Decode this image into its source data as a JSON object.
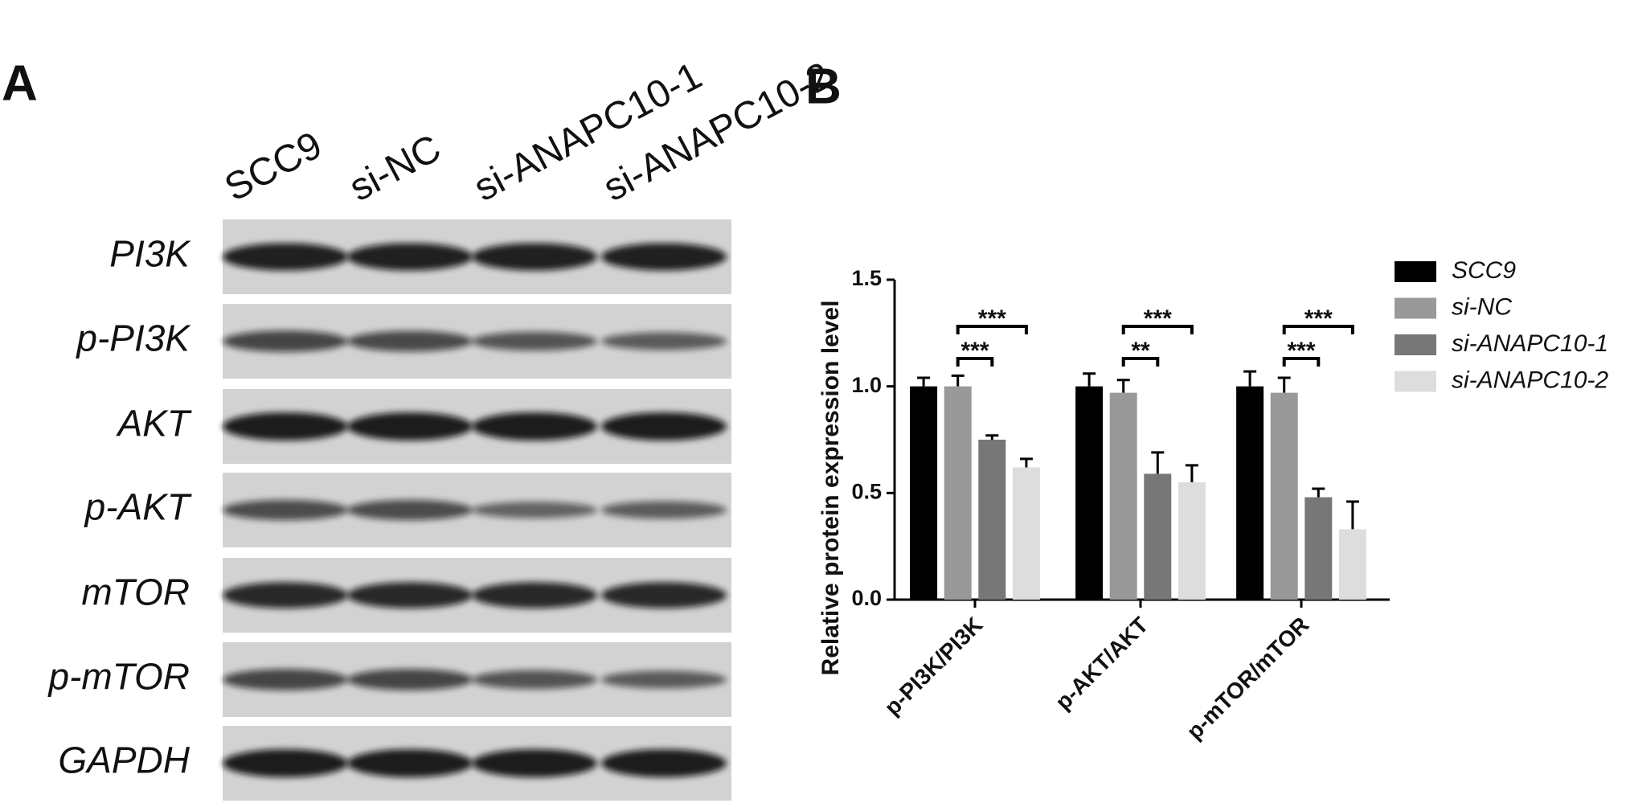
{
  "panel_a": {
    "label": "A",
    "lanes": [
      "SCC9",
      "si-NC",
      "si-ANAPC10-1",
      "si-ANAPC10-2"
    ],
    "rows": [
      "PI3K",
      "p-PI3K",
      "AKT",
      "p-AKT",
      "mTOR",
      "p-mTOR",
      "GAPDH"
    ]
  },
  "chart_data": {
    "type": "bar",
    "panel_label": "B",
    "y_label": "Relative  protein expression level",
    "categories": [
      "p-PI3K/PI3K",
      "p-AKT/AKT",
      "p-mTOR/mTOR"
    ],
    "series": [
      {
        "name": "SCC9",
        "color": "#000000",
        "values": [
          1.0,
          1.0,
          1.0
        ],
        "errors": [
          0.04,
          0.06,
          0.07
        ]
      },
      {
        "name": "si-NC",
        "color": "#999999",
        "values": [
          1.0,
          0.97,
          0.97
        ],
        "errors": [
          0.05,
          0.06,
          0.07
        ]
      },
      {
        "name": "si-ANAPC10-1",
        "color": "#777777",
        "values": [
          0.75,
          0.59,
          0.48
        ],
        "errors": [
          0.02,
          0.1,
          0.04
        ]
      },
      {
        "name": "si-ANAPC10-2",
        "color": "#dddddd",
        "values": [
          0.62,
          0.55,
          0.33
        ],
        "errors": [
          0.04,
          0.08,
          0.13
        ]
      }
    ],
    "ylim": [
      0,
      1.5
    ],
    "yticks": [
      {
        "value": 0,
        "label": "0.0"
      },
      {
        "value": 0.5,
        "label": "0.5"
      },
      {
        "value": 1,
        "label": "1.0"
      },
      {
        "value": 1.5,
        "label": "1.5"
      }
    ],
    "annotations": [
      {
        "category": "p-PI3K/PI3K",
        "between": [
          "si-NC",
          "si-ANAPC10-1"
        ],
        "label": "***"
      },
      {
        "category": "p-PI3K/PI3K",
        "between": [
          "si-NC",
          "si-ANAPC10-2"
        ],
        "label": "***"
      },
      {
        "category": "p-AKT/AKT",
        "between": [
          "si-NC",
          "si-ANAPC10-1"
        ],
        "label": "**"
      },
      {
        "category": "p-AKT/AKT",
        "between": [
          "si-NC",
          "si-ANAPC10-2"
        ],
        "label": "***"
      },
      {
        "category": "p-mTOR/mTOR",
        "between": [
          "si-NC",
          "si-ANAPC10-1"
        ],
        "label": "***"
      },
      {
        "category": "p-mTOR/mTOR",
        "between": [
          "si-NC",
          "si-ANAPC10-2"
        ],
        "label": "***"
      }
    ],
    "legend": "right"
  }
}
